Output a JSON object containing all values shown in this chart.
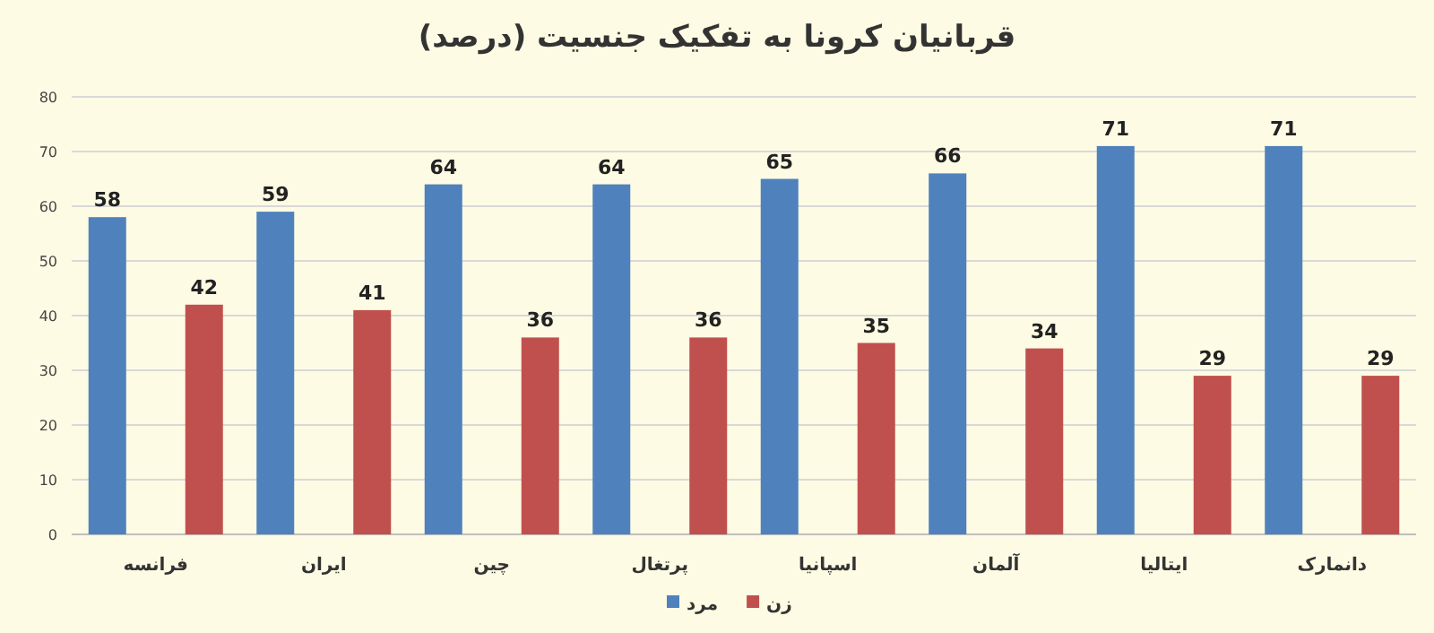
{
  "chart_data": {
    "type": "bar",
    "title": "قربانیان کرونا به تفکیک جنسیت (درصد)",
    "categories": [
      "فرانسه",
      "ایران",
      "چین",
      "پرتغال",
      "اسپانیا",
      "آلمان",
      "ایتالیا",
      "دانمارک"
    ],
    "series": [
      {
        "name": "مرد",
        "color": "#4f81bd",
        "values": [
          58,
          59,
          64,
          64,
          65,
          66,
          71,
          71
        ]
      },
      {
        "name": "زن",
        "color": "#c0504d",
        "values": [
          42,
          41,
          36,
          36,
          35,
          34,
          29,
          29
        ]
      }
    ],
    "ylim": [
      0,
      80
    ],
    "yticks": [
      0,
      10,
      20,
      30,
      40,
      50,
      60,
      70,
      80
    ],
    "grid": "y",
    "legend": "bottom",
    "data_labels": true
  }
}
